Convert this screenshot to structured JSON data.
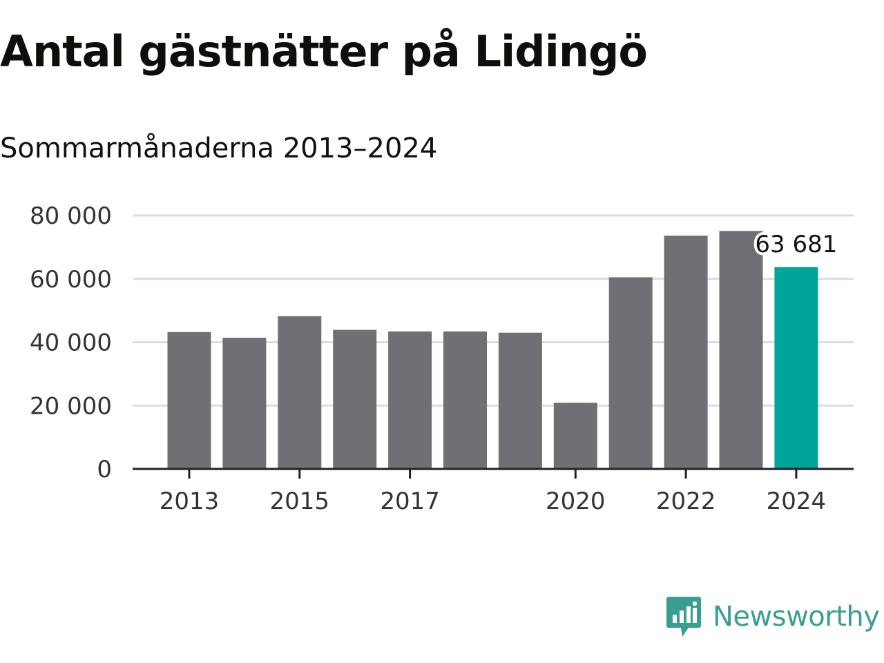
{
  "header": {
    "title": "Antal gästnätter på Lidingö",
    "subtitle": "Sommarmånaderna 2013–2024"
  },
  "brand": {
    "name": "Newsworthy",
    "color": "#3a9d92",
    "icon": "bar-chart-speech-bubble-icon"
  },
  "colors": {
    "bar": "#706f75",
    "highlight": "#00a499",
    "grid": "#dcdcdc",
    "axis": "#222222"
  },
  "chart_data": {
    "type": "bar",
    "categories": [
      "2013",
      "2014",
      "2015",
      "2016",
      "2017",
      "2018",
      "2019",
      "2020",
      "2021",
      "2022",
      "2023",
      "2024"
    ],
    "values": [
      43200,
      41400,
      48200,
      43900,
      43400,
      43400,
      43000,
      20900,
      60500,
      73600,
      75100,
      63681
    ],
    "x_tick_labels": [
      "2013",
      "2015",
      "2017",
      "2020",
      "2022",
      "2024"
    ],
    "y_ticks": [
      0,
      20000,
      40000,
      60000,
      80000
    ],
    "y_tick_labels": [
      "0",
      "20 000",
      "40 000",
      "60 000",
      "80 000"
    ],
    "ylim": [
      0,
      80000
    ],
    "highlight_category": "2024",
    "annotation": "63 681",
    "grid": true,
    "legend": "none",
    "title": "Antal gästnätter på Lidingö",
    "subtitle": "Sommarmånaderna 2013–2024",
    "xlabel": "",
    "ylabel": ""
  }
}
